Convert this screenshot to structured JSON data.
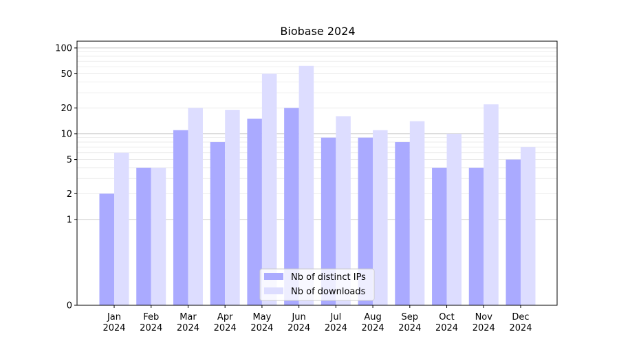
{
  "chart_data": {
    "type": "bar",
    "title": "Biobase 2024",
    "xlabel": "",
    "ylabel": "",
    "y_scale": "symlog",
    "ylim": [
      0,
      120
    ],
    "y_ticks": [
      0,
      1,
      2,
      5,
      10,
      20,
      50,
      100
    ],
    "grid": "y",
    "legend_position": "bottom-center",
    "categories": [
      [
        "Jan",
        "2024"
      ],
      [
        "Feb",
        "2024"
      ],
      [
        "Mar",
        "2024"
      ],
      [
        "Apr",
        "2024"
      ],
      [
        "May",
        "2024"
      ],
      [
        "Jun",
        "2024"
      ],
      [
        "Jul",
        "2024"
      ],
      [
        "Aug",
        "2024"
      ],
      [
        "Sep",
        "2024"
      ],
      [
        "Oct",
        "2024"
      ],
      [
        "Nov",
        "2024"
      ],
      [
        "Dec",
        "2024"
      ]
    ],
    "series": [
      {
        "name": "Nb of distinct IPs",
        "color": "#aaaaff",
        "values": [
          2,
          4,
          11,
          8,
          15,
          20,
          9,
          9,
          8,
          4,
          4,
          5
        ]
      },
      {
        "name": "Nb of downloads",
        "color": "#ddddff",
        "values": [
          6,
          4,
          20,
          19,
          50,
          62,
          16,
          11,
          14,
          10,
          22,
          7
        ]
      }
    ]
  }
}
